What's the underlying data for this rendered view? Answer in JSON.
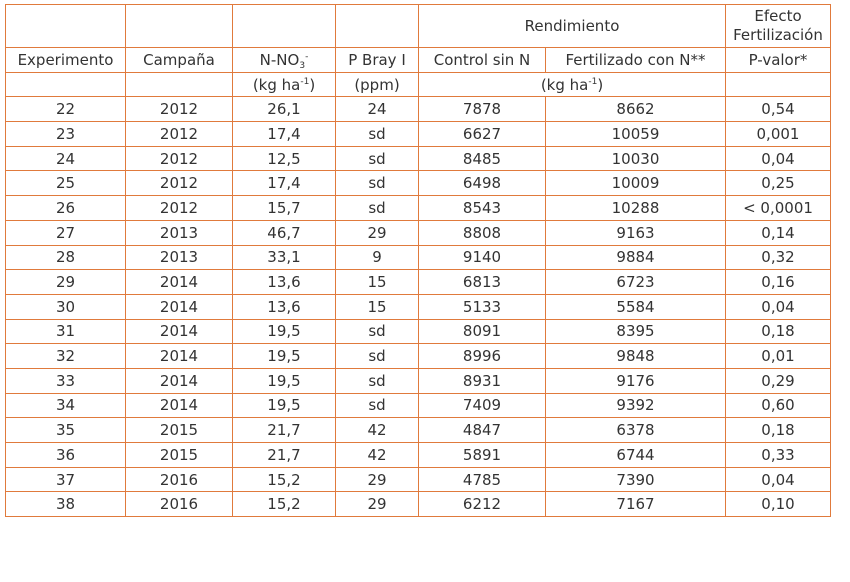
{
  "header": {
    "rendimiento": "Rendimiento",
    "efecto_line1": "Efecto",
    "efecto_line2": "Fertilización",
    "experimento": "Experimento",
    "campana": "Campaña",
    "nno3_base": "N-NO",
    "nno3_sub": "3",
    "nno3_sup": "-",
    "pbray": "P Bray I",
    "control": "Control sin N",
    "fertilizado": "Fertilizado con N**",
    "pvalor": "P-valor*"
  },
  "units": {
    "kg_base": "(kg ha",
    "kg_sup": "-1",
    "kg_close": ")",
    "ppm": "(ppm)"
  },
  "rows": [
    [
      "22",
      "2012",
      "26,1",
      "24",
      "7878",
      "8662",
      "0,54"
    ],
    [
      "23",
      "2012",
      "17,4",
      "sd",
      "6627",
      "10059",
      "0,001"
    ],
    [
      "24",
      "2012",
      "12,5",
      "sd",
      "8485",
      "10030",
      "0,04"
    ],
    [
      "25",
      "2012",
      "17,4",
      "sd",
      "6498",
      "10009",
      "0,25"
    ],
    [
      "26",
      "2012",
      "15,7",
      "sd",
      "8543",
      "10288",
      "< 0,0001"
    ],
    [
      "27",
      "2013",
      "46,7",
      "29",
      "8808",
      "9163",
      "0,14"
    ],
    [
      "28",
      "2013",
      "33,1",
      "9",
      "9140",
      "9884",
      "0,32"
    ],
    [
      "29",
      "2014",
      "13,6",
      "15",
      "6813",
      "6723",
      "0,16"
    ],
    [
      "30",
      "2014",
      "13,6",
      "15",
      "5133",
      "5584",
      "0,04"
    ],
    [
      "31",
      "2014",
      "19,5",
      "sd",
      "8091",
      "8395",
      "0,18"
    ],
    [
      "32",
      "2014",
      "19,5",
      "sd",
      "8996",
      "9848",
      "0,01"
    ],
    [
      "33",
      "2014",
      "19,5",
      "sd",
      "8931",
      "9176",
      "0,29"
    ],
    [
      "34",
      "2014",
      "19,5",
      "sd",
      "7409",
      "9392",
      "0,60"
    ],
    [
      "35",
      "2015",
      "21,7",
      "42",
      "4847",
      "6378",
      "0,18"
    ],
    [
      "36",
      "2015",
      "21,7",
      "42",
      "5891",
      "6744",
      "0,33"
    ],
    [
      "37",
      "2016",
      "15,2",
      "29",
      "4785",
      "7390",
      "0,04"
    ],
    [
      "38",
      "2016",
      "15,2",
      "29",
      "6212",
      "7167",
      "0,10"
    ]
  ]
}
